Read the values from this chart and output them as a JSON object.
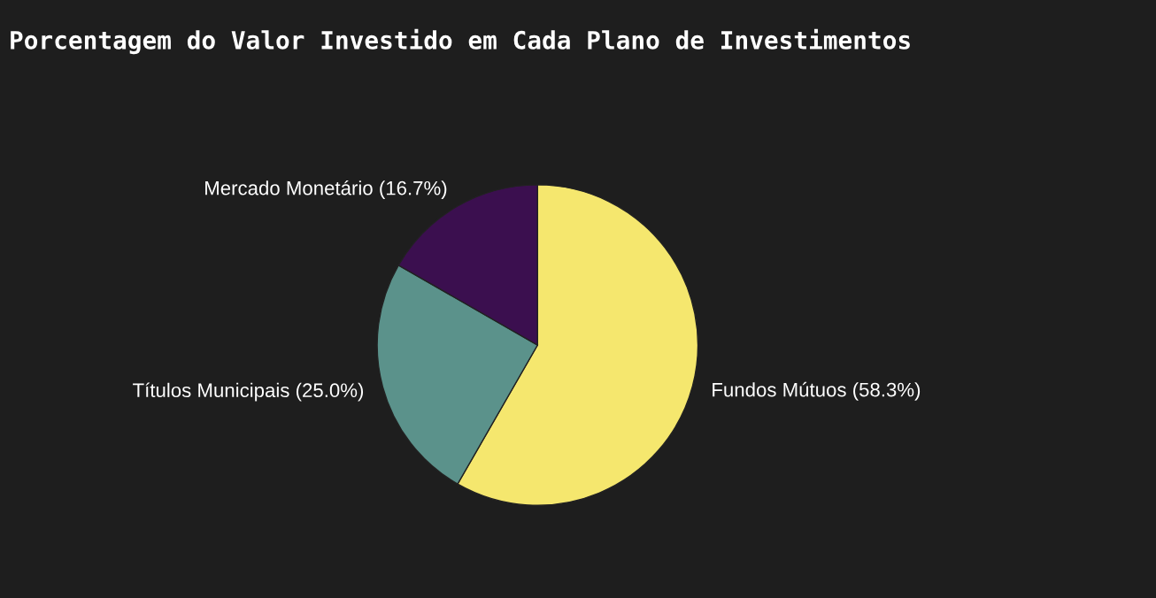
{
  "chart_data": {
    "type": "pie",
    "title": "Porcentagem do Valor Investido em Cada Plano de Investimentos",
    "categories": [
      "Fundos Mútuos (58.3%)",
      "Títulos Municipais (25.0%)",
      "Mercado Monetário (16.7%)"
    ],
    "values": [
      58.3,
      25.0,
      16.7
    ],
    "colors": [
      "#f5e76e",
      "#5b928b",
      "#3b0f4f"
    ]
  }
}
